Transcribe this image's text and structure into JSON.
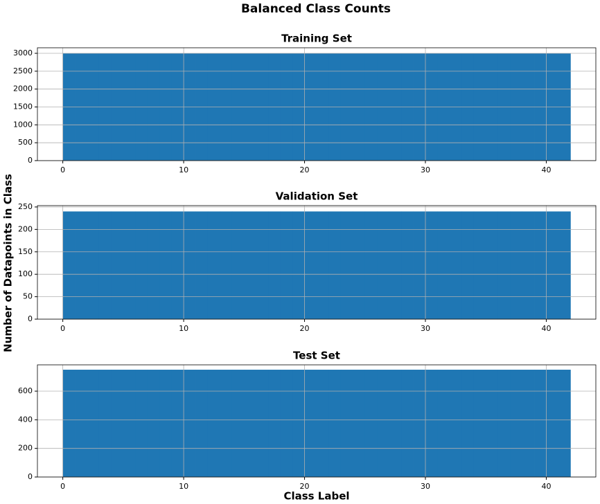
{
  "figure": {
    "title": "Balanced Class Counts",
    "ylabel": "Number of Datapoints in Class",
    "xlabel": "Class Label"
  },
  "chart_data": [
    {
      "type": "histogram",
      "title": "Training Set",
      "color": "#1f77b4",
      "grid": true,
      "bins": [
        0,
        1,
        2,
        3,
        4,
        5,
        6,
        7,
        8,
        9,
        10,
        11,
        12,
        13,
        14,
        15,
        16,
        17,
        18,
        19,
        20,
        21,
        22,
        23,
        24,
        25,
        26,
        27,
        28,
        29,
        30,
        31,
        32,
        33,
        34,
        35,
        36,
        37,
        38,
        39,
        40,
        41,
        42
      ],
      "values": [
        3000,
        3000,
        3000,
        3000,
        3000,
        3000,
        3000,
        3000,
        3000,
        3000,
        3000,
        3000,
        3000,
        3000,
        3000,
        3000,
        3000,
        3000,
        3000,
        3000,
        3000,
        3000,
        3000,
        3000,
        3000,
        3000,
        3000,
        3000,
        3000,
        3000,
        3000,
        3000,
        3000,
        3000,
        3000,
        3000,
        3000,
        3000,
        3000,
        3000,
        3000,
        3000
      ],
      "xlim": [
        -2.1,
        44.1
      ],
      "xticks": [
        0,
        10,
        20,
        30,
        40
      ],
      "ylim": [
        0,
        3155
      ],
      "yticks": [
        0,
        500,
        1000,
        1500,
        2000,
        2500,
        3000
      ]
    },
    {
      "type": "histogram",
      "title": "Validation Set",
      "color": "#1f77b4",
      "grid": true,
      "bins": [
        0,
        1,
        2,
        3,
        4,
        5,
        6,
        7,
        8,
        9,
        10,
        11,
        12,
        13,
        14,
        15,
        16,
        17,
        18,
        19,
        20,
        21,
        22,
        23,
        24,
        25,
        26,
        27,
        28,
        29,
        30,
        31,
        32,
        33,
        34,
        35,
        36,
        37,
        38,
        39,
        40,
        41,
        42
      ],
      "values": [
        240,
        240,
        240,
        240,
        240,
        240,
        240,
        240,
        240,
        240,
        240,
        240,
        240,
        240,
        240,
        240,
        240,
        240,
        240,
        240,
        240,
        240,
        240,
        240,
        240,
        240,
        240,
        240,
        240,
        240,
        240,
        240,
        240,
        240,
        240,
        240,
        240,
        240,
        240,
        240,
        240,
        240
      ],
      "xlim": [
        -2.1,
        44.1
      ],
      "xticks": [
        0,
        10,
        20,
        30,
        40
      ],
      "ylim": [
        0,
        253
      ],
      "yticks": [
        0,
        50,
        100,
        150,
        200,
        250
      ]
    },
    {
      "type": "histogram",
      "title": "Test Set",
      "color": "#1f77b4",
      "grid": true,
      "bins": [
        0,
        1,
        2,
        3,
        4,
        5,
        6,
        7,
        8,
        9,
        10,
        11,
        12,
        13,
        14,
        15,
        16,
        17,
        18,
        19,
        20,
        21,
        22,
        23,
        24,
        25,
        26,
        27,
        28,
        29,
        30,
        31,
        32,
        33,
        34,
        35,
        36,
        37,
        38,
        39,
        40,
        41,
        42
      ],
      "values": [
        750,
        750,
        750,
        750,
        750,
        750,
        750,
        750,
        750,
        750,
        750,
        750,
        750,
        750,
        750,
        750,
        750,
        750,
        750,
        750,
        750,
        750,
        750,
        750,
        750,
        750,
        750,
        750,
        750,
        750,
        750,
        750,
        750,
        750,
        750,
        750,
        750,
        750,
        750,
        750,
        750,
        750
      ],
      "xlim": [
        -2.1,
        44.1
      ],
      "xticks": [
        0,
        10,
        20,
        30,
        40
      ],
      "ylim": [
        0,
        784
      ],
      "yticks": [
        0,
        200,
        400,
        600
      ]
    }
  ]
}
